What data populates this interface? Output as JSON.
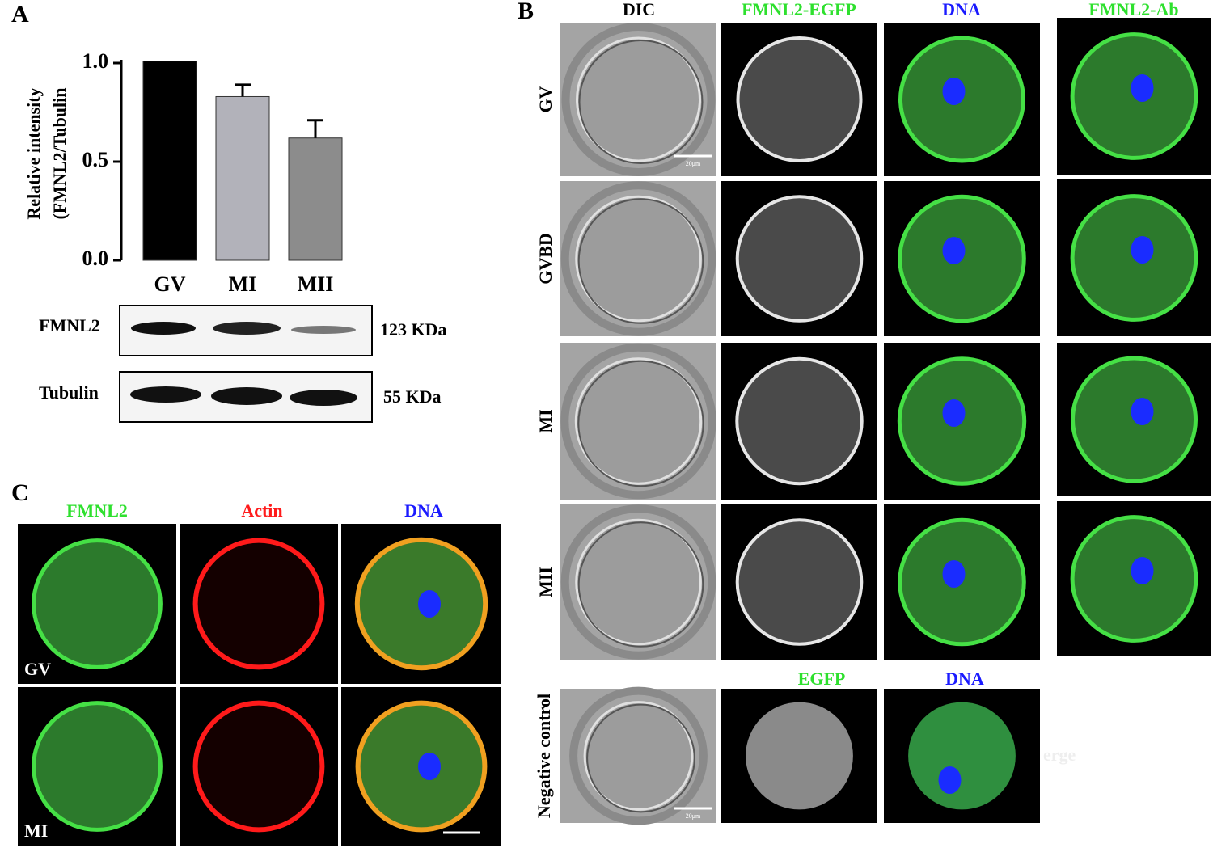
{
  "panel_labels": [
    "A",
    "B",
    "C"
  ],
  "chart_data": {
    "type": "bar",
    "ylabel": [
      "Relative intensity",
      "(FMNL2/Tubulin"
    ],
    "categories": [
      "GV",
      "MI",
      "MII"
    ],
    "values": [
      1.01,
      0.83,
      0.62
    ],
    "errors": [
      null,
      0.06,
      0.09
    ],
    "colors": [
      "#000000",
      "#b2b2ba",
      "#8c8c8c"
    ],
    "ylim": [
      0,
      1.0
    ],
    "yticks": [
      {
        "value": 0,
        "label": "0.0"
      },
      0.5,
      {
        "value": 1.0,
        "label": "1.0"
      }
    ]
  },
  "blot": {
    "rows": [
      {
        "protein": "FMNL2",
        "size": "123 KDa"
      },
      {
        "protein": "Tubulin",
        "size": "55 KDa"
      }
    ]
  },
  "panel_b": {
    "columns": [
      "DIC",
      "FMNL2-EGFP",
      "DNA",
      "FMNL2-Ab"
    ],
    "rows": [
      "GV",
      "GVBD",
      "MI",
      "MII"
    ],
    "scale_bar": "20μm",
    "negative_control": {
      "label": "Negative control",
      "columns": [
        "EGFP",
        "DNA"
      ],
      "scale_bar": "20μm"
    },
    "watermark": "erge"
  },
  "panel_c": {
    "columns": [
      "FMNL2",
      "Actin",
      "DNA"
    ],
    "rows": [
      "GV",
      "MI"
    ]
  }
}
